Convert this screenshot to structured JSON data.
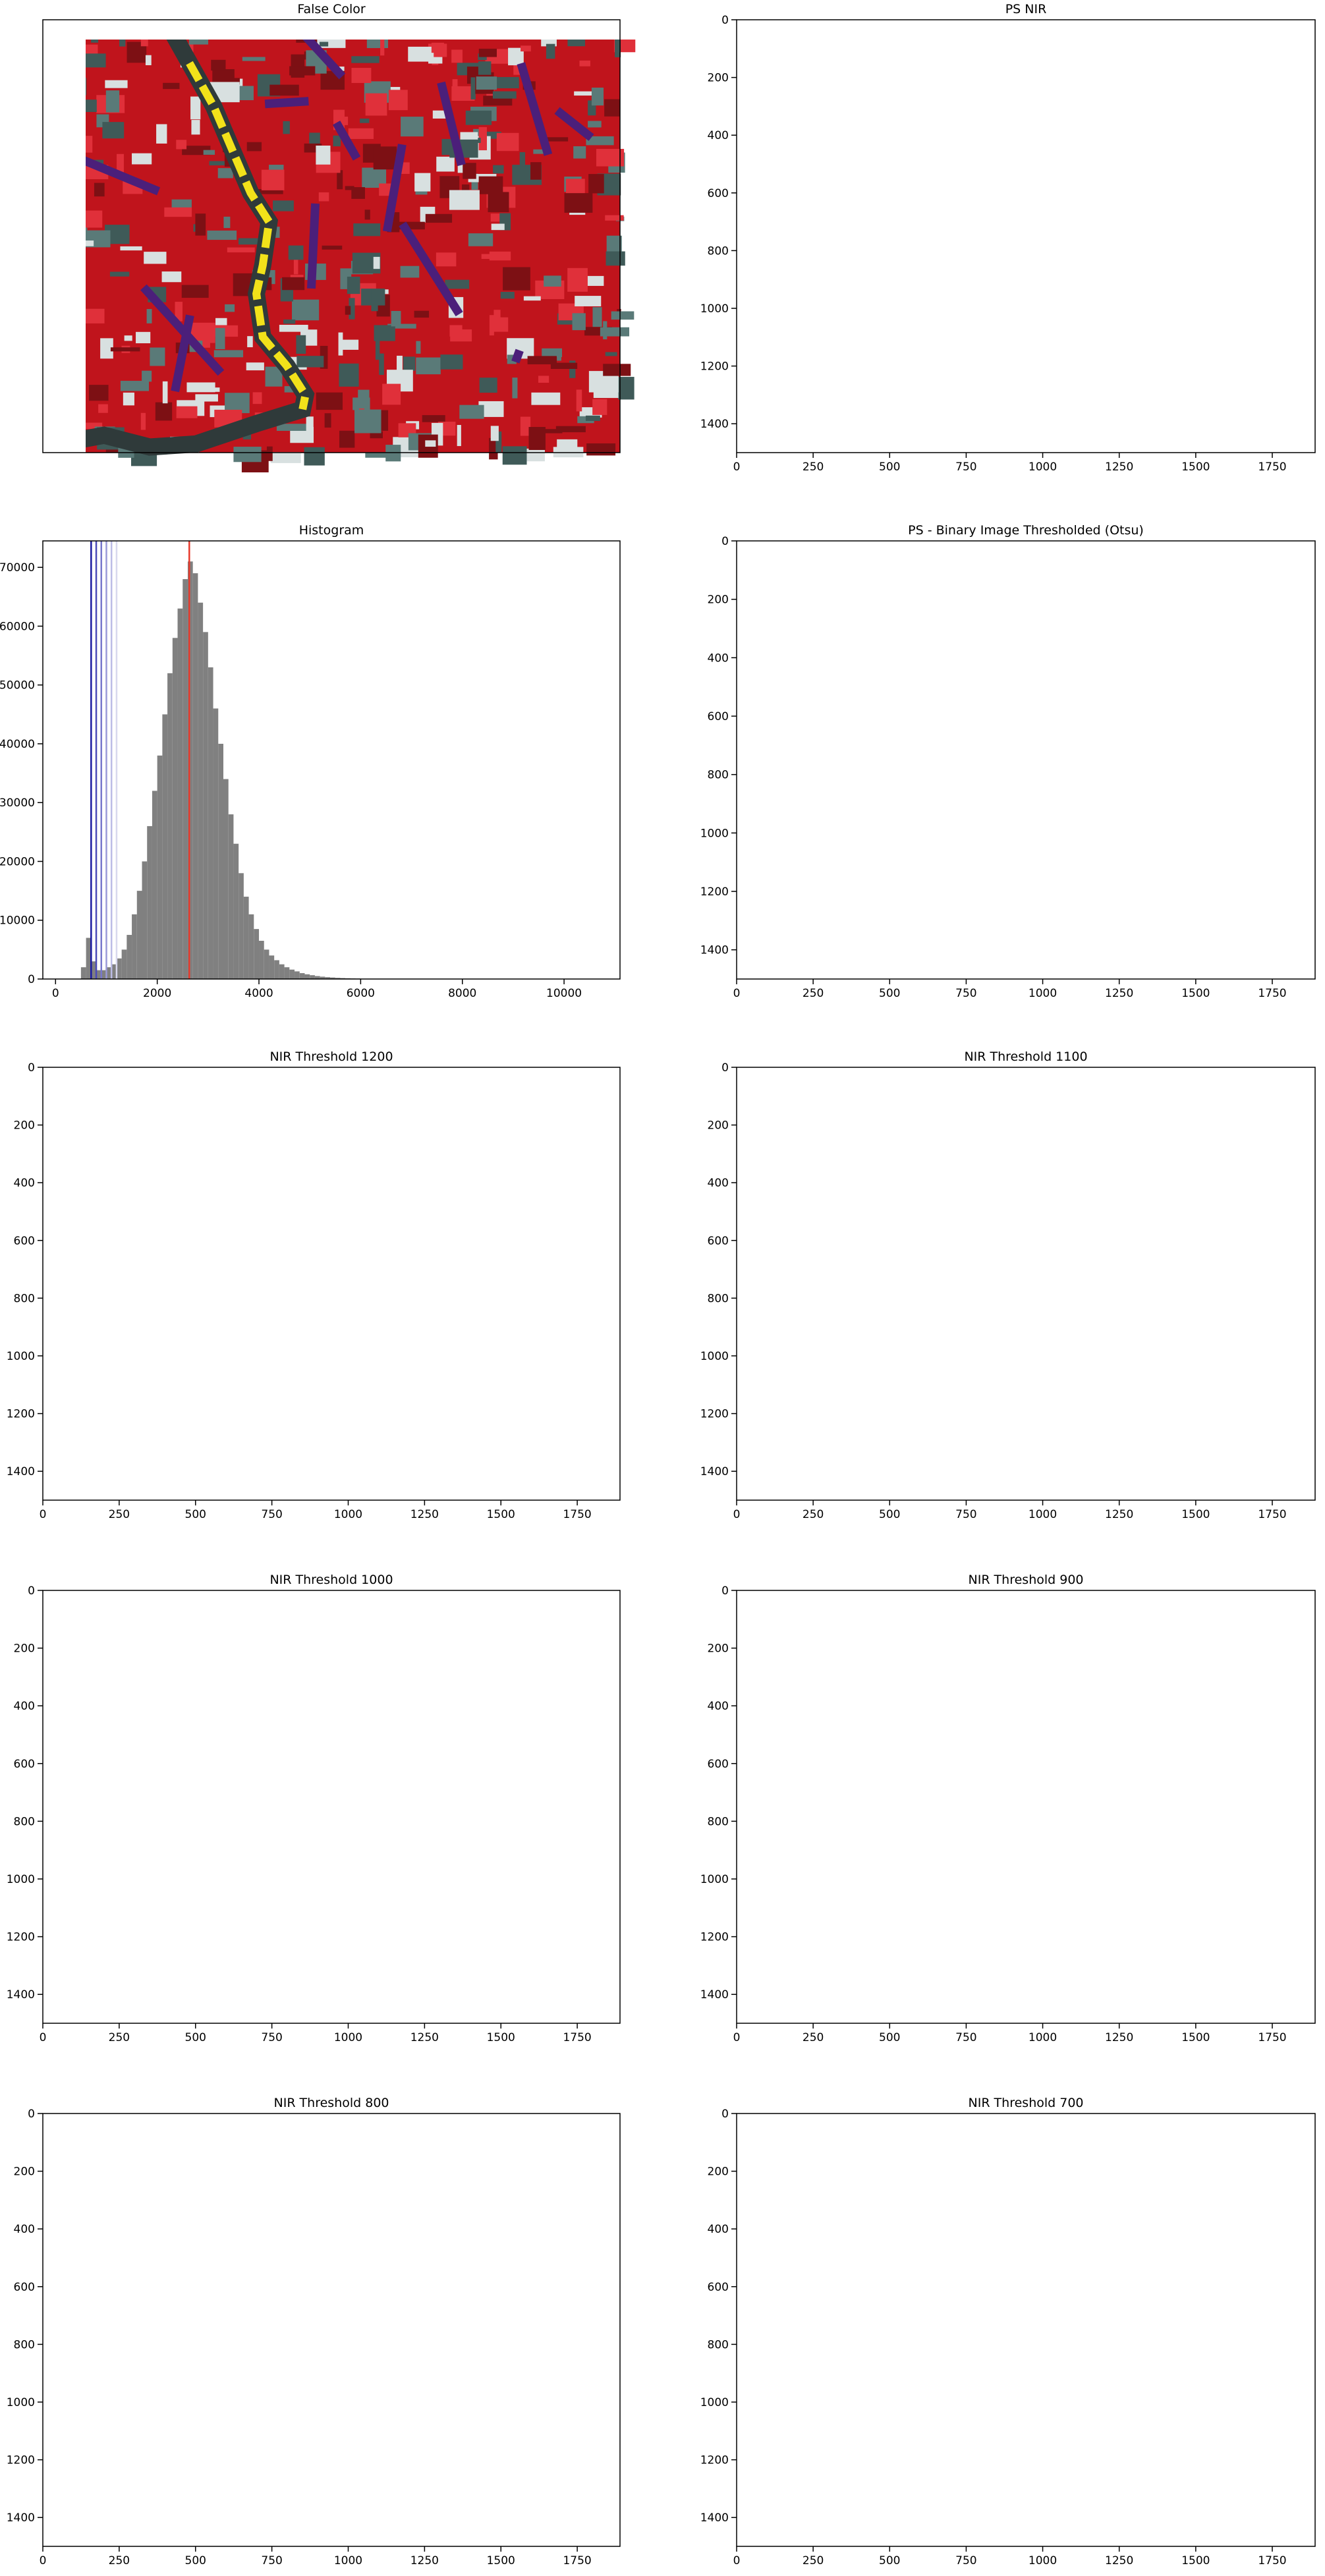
{
  "chart_data": [
    {
      "type": "image",
      "title": "False Color",
      "render": "false-color"
    },
    {
      "type": "image",
      "title": "PS NIR",
      "render": "nir",
      "xlim": [
        0,
        1890
      ],
      "ylim": [
        1500,
        0
      ],
      "xticks": [
        0,
        250,
        500,
        750,
        1000,
        1250,
        1500,
        1750
      ],
      "yticks": [
        0,
        200,
        400,
        600,
        800,
        1000,
        1200,
        1400
      ]
    },
    {
      "type": "histogram",
      "title": "Histogram",
      "color": "#808080",
      "bins": [
        500,
        600,
        700,
        800,
        900,
        1000,
        1100,
        1200,
        1300,
        1400,
        1500,
        1600,
        1700,
        1800,
        1900,
        2000,
        2100,
        2200,
        2300,
        2400,
        2500,
        2600,
        2700,
        2800,
        2900,
        3000,
        3100,
        3200,
        3300,
        3400,
        3500,
        3600,
        3700,
        3800,
        3900,
        4000,
        4100,
        4200,
        4300,
        4400,
        4500,
        4600,
        4700,
        4800,
        4900,
        5000,
        5100,
        5200,
        5300,
        5400,
        5500,
        5600,
        5700,
        5800,
        5900,
        6000
      ],
      "values": [
        2000,
        7000,
        3000,
        1500,
        1500,
        2000,
        2500,
        3500,
        5000,
        7500,
        11000,
        15000,
        20000,
        26000,
        32000,
        38000,
        45000,
        52000,
        58000,
        63000,
        68000,
        71000,
        69000,
        64000,
        59000,
        53000,
        46000,
        40000,
        34000,
        28000,
        23000,
        18000,
        14000,
        11000,
        8500,
        6500,
        5000,
        4000,
        3200,
        2500,
        2000,
        1600,
        1300,
        1000,
        800,
        650,
        500,
        400,
        320,
        260,
        200,
        160,
        130,
        100,
        80
      ],
      "vlines": [
        {
          "value": 2630,
          "color": "#e8392b"
        },
        {
          "value": 700,
          "color": "#1a1aa0"
        },
        {
          "value": 800,
          "color": "#4a4ab8"
        },
        {
          "value": 900,
          "color": "#7777cc"
        },
        {
          "value": 1000,
          "color": "#9a9ad8"
        },
        {
          "value": 1100,
          "color": "#bcbce6"
        },
        {
          "value": 1200,
          "color": "#d8d8ee"
        }
      ],
      "xlim": [
        -250,
        11100
      ],
      "ylim": [
        0,
        74500
      ],
      "xticks": [
        0,
        2000,
        4000,
        6000,
        8000,
        10000
      ],
      "yticks": [
        0,
        10000,
        20000,
        30000,
        40000,
        50000,
        60000,
        70000
      ]
    },
    {
      "type": "image",
      "title": "PS - Binary Image Thresholded (Otsu)",
      "render": "otsu",
      "xlim": [
        0,
        1890
      ],
      "ylim": [
        1500,
        0
      ],
      "xticks": [
        0,
        250,
        500,
        750,
        1000,
        1250,
        1500,
        1750
      ],
      "yticks": [
        0,
        200,
        400,
        600,
        800,
        1000,
        1200,
        1400
      ]
    },
    {
      "type": "image",
      "title": "NIR Threshold 1200",
      "render": "mask",
      "xlim": [
        0,
        1890
      ],
      "ylim": [
        1500,
        0
      ],
      "xticks": [
        0,
        250,
        500,
        750,
        1000,
        1250,
        1500,
        1750
      ],
      "yticks": [
        0,
        200,
        400,
        600,
        800,
        1000,
        1200,
        1400
      ]
    },
    {
      "type": "image",
      "title": "NIR Threshold 1100",
      "render": "mask",
      "xlim": [
        0,
        1890
      ],
      "ylim": [
        1500,
        0
      ],
      "xticks": [
        0,
        250,
        500,
        750,
        1000,
        1250,
        1500,
        1750
      ],
      "yticks": [
        0,
        200,
        400,
        600,
        800,
        1000,
        1200,
        1400
      ]
    },
    {
      "type": "image",
      "title": "NIR Threshold 1000",
      "render": "mask",
      "xlim": [
        0,
        1890
      ],
      "ylim": [
        1500,
        0
      ],
      "xticks": [
        0,
        250,
        500,
        750,
        1000,
        1250,
        1500,
        1750
      ],
      "yticks": [
        0,
        200,
        400,
        600,
        800,
        1000,
        1200,
        1400
      ]
    },
    {
      "type": "image",
      "title": "NIR Threshold 900",
      "render": "mask",
      "xlim": [
        0,
        1890
      ],
      "ylim": [
        1500,
        0
      ],
      "xticks": [
        0,
        250,
        500,
        750,
        1000,
        1250,
        1500,
        1750
      ],
      "yticks": [
        0,
        200,
        400,
        600,
        800,
        1000,
        1200,
        1400
      ]
    },
    {
      "type": "image",
      "title": "NIR Threshold 800",
      "render": "mask",
      "xlim": [
        0,
        1890
      ],
      "ylim": [
        1500,
        0
      ],
      "xticks": [
        0,
        250,
        500,
        750,
        1000,
        1250,
        1500,
        1750
      ],
      "yticks": [
        0,
        200,
        400,
        600,
        800,
        1000,
        1200,
        1400
      ]
    },
    {
      "type": "image",
      "title": "NIR Threshold 700",
      "render": "mask",
      "xlim": [
        0,
        1890
      ],
      "ylim": [
        1500,
        0
      ],
      "xticks": [
        0,
        250,
        500,
        750,
        1000,
        1250,
        1500,
        1750
      ],
      "yticks": [
        0,
        200,
        400,
        600,
        800,
        1000,
        1200,
        1400
      ]
    }
  ]
}
